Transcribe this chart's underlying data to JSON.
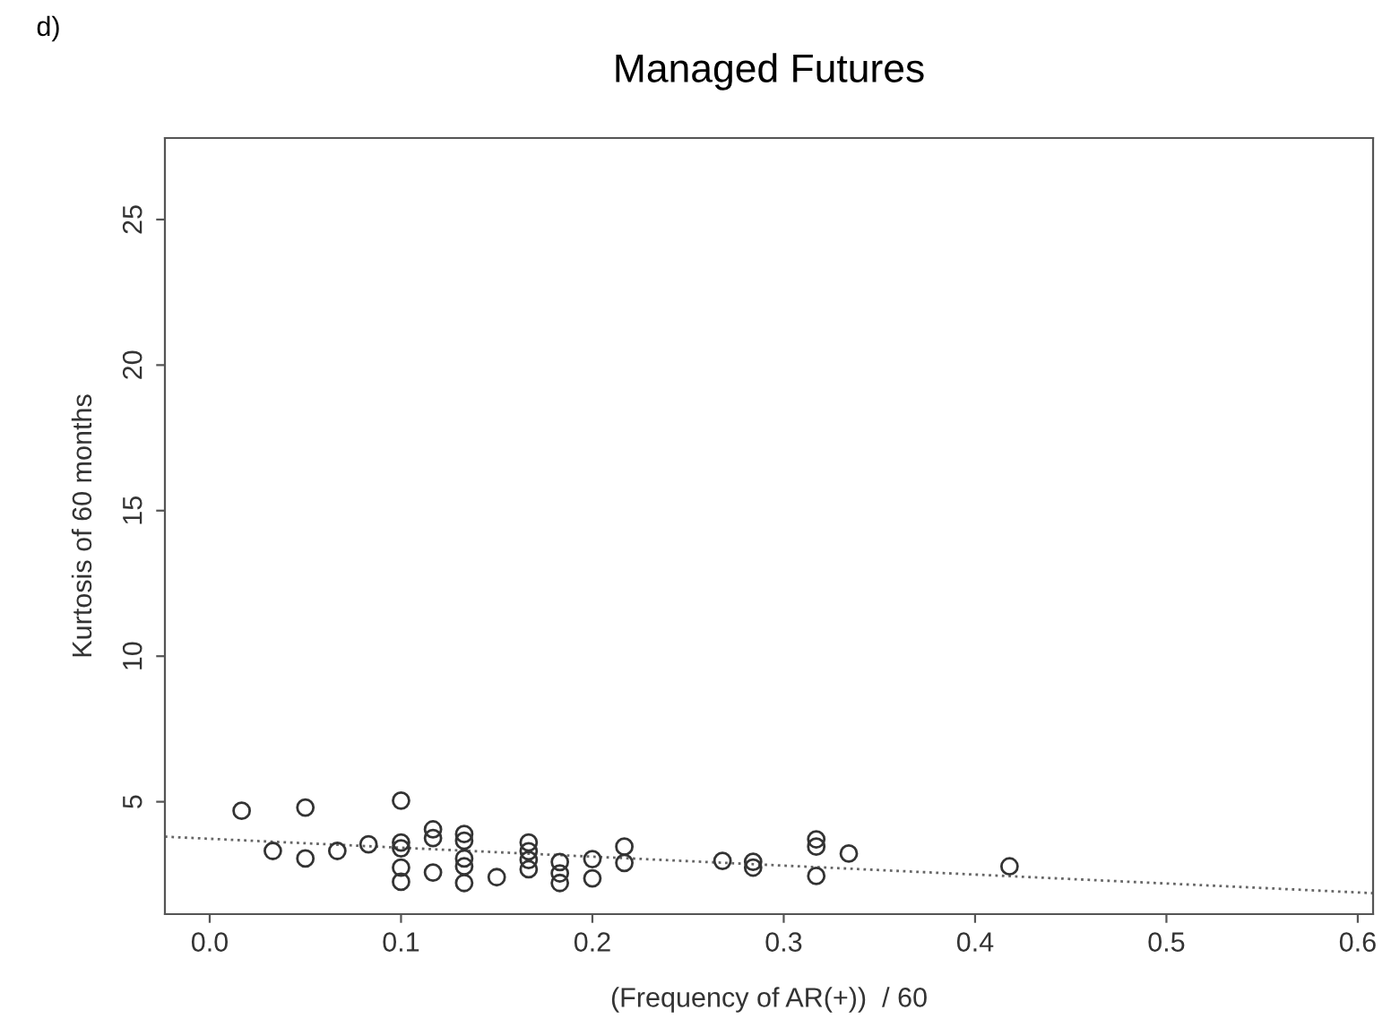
{
  "chart_data": {
    "type": "scatter",
    "title": "Managed Futures",
    "xlabel": "(Frequency of AR(+))  / 60",
    "ylabel": "Kurtosis of 60 months",
    "annotations": [
      "d)"
    ],
    "xlim": [
      -0.0234,
      0.608
    ],
    "ylim": [
      1.14,
      27.8
    ],
    "xticks": [
      {
        "value": 0,
        "label": "0.0"
      },
      0.1,
      0.2,
      0.3,
      0.4,
      0.5,
      0.6
    ],
    "yticks": [
      5,
      10,
      15,
      20,
      25
    ],
    "grid": false,
    "marker": "circle",
    "series": [
      {
        "color": "#333333",
        "x": [
          0.0167,
          0.033,
          0.05,
          0.05,
          0.0667,
          0.083,
          0.1,
          0.1,
          0.1,
          0.1,
          0.1,
          0.1167,
          0.1167,
          0.1167,
          0.133,
          0.133,
          0.133,
          0.133,
          0.133,
          0.15,
          0.1667,
          0.1667,
          0.1667,
          0.1667,
          0.183,
          0.183,
          0.183,
          0.2,
          0.2,
          0.2167,
          0.2167,
          0.268,
          0.284,
          0.284,
          0.317,
          0.317,
          0.317,
          0.334,
          0.418
        ],
        "values": [
          4.69,
          3.31,
          4.8,
          3.05,
          3.31,
          3.54,
          5.04,
          3.6,
          3.4,
          2.74,
          2.25,
          4.05,
          3.75,
          2.57,
          3.89,
          3.66,
          3.05,
          2.78,
          2.21,
          2.41,
          3.6,
          3.3,
          3.0,
          2.68,
          2.93,
          2.54,
          2.21,
          3.03,
          2.37,
          3.46,
          2.9,
          2.97,
          2.94,
          2.74,
          3.71,
          3.46,
          2.45,
          3.22,
          2.78
        ]
      },
      {
        "type": "line",
        "color": "#666666",
        "line_style": "dotted",
        "marker": "none",
        "x": [
          -0.0234,
          0.608
        ],
        "values": [
          3.8,
          1.86
        ]
      }
    ]
  }
}
